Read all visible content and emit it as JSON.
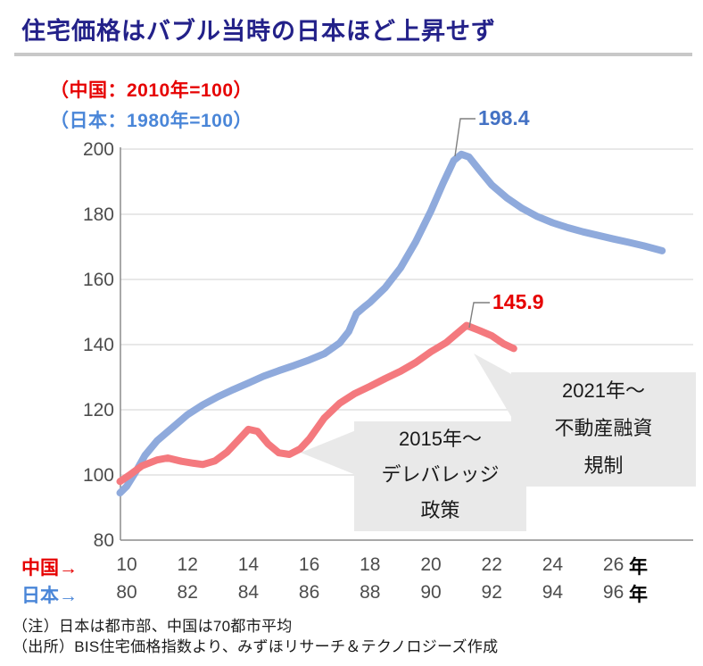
{
  "page": {
    "title": "住宅価格はバブル当時の日本ほど上昇せず",
    "notes": [
      "（注）日本は都市部、中国は70都市平均",
      "（出所）BIS住宅価格指数より、みずほリサーチ＆テクノロジーズ作成"
    ]
  },
  "legend": {
    "china": "（中国：2010年=100）",
    "japan": "（日本：1980年=100）"
  },
  "colors": {
    "title": "#232189",
    "japan_line": "#8FAADC",
    "china_line": "#F4797E",
    "japan_label": "#4472C4",
    "china_label": "#E60000",
    "gridline": "#D9D9D9",
    "axis": "#8C8C8C",
    "tick_text": "#4D4D4D",
    "annotation_bg": "#E9E9E9",
    "leader": "#7F7F7F"
  },
  "chart_data": {
    "type": "line",
    "title": "住宅価格はバブル当時の日本ほど上昇せず",
    "ylabel": "",
    "xlabel": "年",
    "grid": true,
    "y_axis": {
      "ticks": [
        80,
        100,
        120,
        140,
        160,
        180,
        200
      ],
      "range": [
        80,
        207
      ]
    },
    "x_axis": {
      "rows": [
        {
          "label": "中国→",
          "ticks": [
            "10",
            "12",
            "14",
            "16",
            "18",
            "20",
            "22",
            "24",
            "26"
          ],
          "unit_suffix": "年"
        },
        {
          "label": "日本→",
          "ticks": [
            "80",
            "82",
            "84",
            "86",
            "88",
            "90",
            "92",
            "94",
            "96"
          ],
          "unit_suffix": "年"
        }
      ],
      "china_year_range": [
        2010,
        2027.6
      ]
    },
    "series": [
      {
        "name": "日本（1980年=100）",
        "color": "#8FAADC",
        "peak_label": "198.4",
        "peak_point": [
          2021.0,
          198.4
        ],
        "points": [
          [
            2009.78,
            94.5
          ],
          [
            2010.0,
            96.5
          ],
          [
            2010.3,
            101
          ],
          [
            2010.6,
            106
          ],
          [
            2011.0,
            110.5
          ],
          [
            2011.5,
            114.5
          ],
          [
            2012.0,
            118.5
          ],
          [
            2012.5,
            121.5
          ],
          [
            2013.0,
            124
          ],
          [
            2013.5,
            126.2
          ],
          [
            2014.0,
            128.2
          ],
          [
            2014.5,
            130.3
          ],
          [
            2015.0,
            132
          ],
          [
            2015.5,
            133.6
          ],
          [
            2016.0,
            135.3
          ],
          [
            2016.5,
            137.2
          ],
          [
            2017.0,
            140.5
          ],
          [
            2017.3,
            144
          ],
          [
            2017.55,
            149.5
          ],
          [
            2017.8,
            151.5
          ],
          [
            2018.0,
            153
          ],
          [
            2018.5,
            157.5
          ],
          [
            2019.0,
            163.5
          ],
          [
            2019.5,
            171.5
          ],
          [
            2020.0,
            181
          ],
          [
            2020.4,
            189.5
          ],
          [
            2020.75,
            196.5
          ],
          [
            2021.0,
            198.4
          ],
          [
            2021.25,
            197.6
          ],
          [
            2021.6,
            193.5
          ],
          [
            2022.0,
            189
          ],
          [
            2022.5,
            185
          ],
          [
            2023.0,
            181.8
          ],
          [
            2023.5,
            179.3
          ],
          [
            2024.0,
            177.4
          ],
          [
            2024.5,
            175.9
          ],
          [
            2025.0,
            174.6
          ],
          [
            2025.5,
            173.5
          ],
          [
            2026.0,
            172.4
          ],
          [
            2026.5,
            171.4
          ],
          [
            2027.0,
            170.3
          ],
          [
            2027.6,
            168.8
          ]
        ]
      },
      {
        "name": "中国（2010年=100）",
        "color": "#F4797E",
        "peak_label": "145.9",
        "peak_point": [
          2021.17,
          145.9
        ],
        "points": [
          [
            2009.78,
            98
          ],
          [
            2010.1,
            100
          ],
          [
            2010.5,
            102.8
          ],
          [
            2011.0,
            104.6
          ],
          [
            2011.35,
            105.2
          ],
          [
            2011.8,
            104.2
          ],
          [
            2012.2,
            103.6
          ],
          [
            2012.5,
            103.2
          ],
          [
            2012.9,
            104.3
          ],
          [
            2013.3,
            107
          ],
          [
            2013.7,
            111
          ],
          [
            2014.0,
            114
          ],
          [
            2014.3,
            113.4
          ],
          [
            2014.65,
            109.5
          ],
          [
            2015.0,
            106.8
          ],
          [
            2015.35,
            106.3
          ],
          [
            2015.7,
            108
          ],
          [
            2016.0,
            111
          ],
          [
            2016.5,
            117.5
          ],
          [
            2017.0,
            122
          ],
          [
            2017.5,
            125
          ],
          [
            2018.0,
            127.2
          ],
          [
            2018.5,
            129.6
          ],
          [
            2019.0,
            131.8
          ],
          [
            2019.5,
            134.5
          ],
          [
            2020.0,
            137.8
          ],
          [
            2020.5,
            140.6
          ],
          [
            2021.17,
            145.9
          ],
          [
            2021.6,
            144.3
          ],
          [
            2022.0,
            142.7
          ],
          [
            2022.4,
            140.2
          ],
          [
            2022.72,
            138.8
          ]
        ]
      }
    ],
    "annotations": [
      {
        "lines": [
          "2015年～",
          "デレバレッジ",
          "政策"
        ],
        "points_to": "中国 2015年付近"
      },
      {
        "lines": [
          "2021年～",
          "不動産融資",
          "規制"
        ],
        "points_to": "中国 2021年ピーク付近"
      }
    ]
  }
}
